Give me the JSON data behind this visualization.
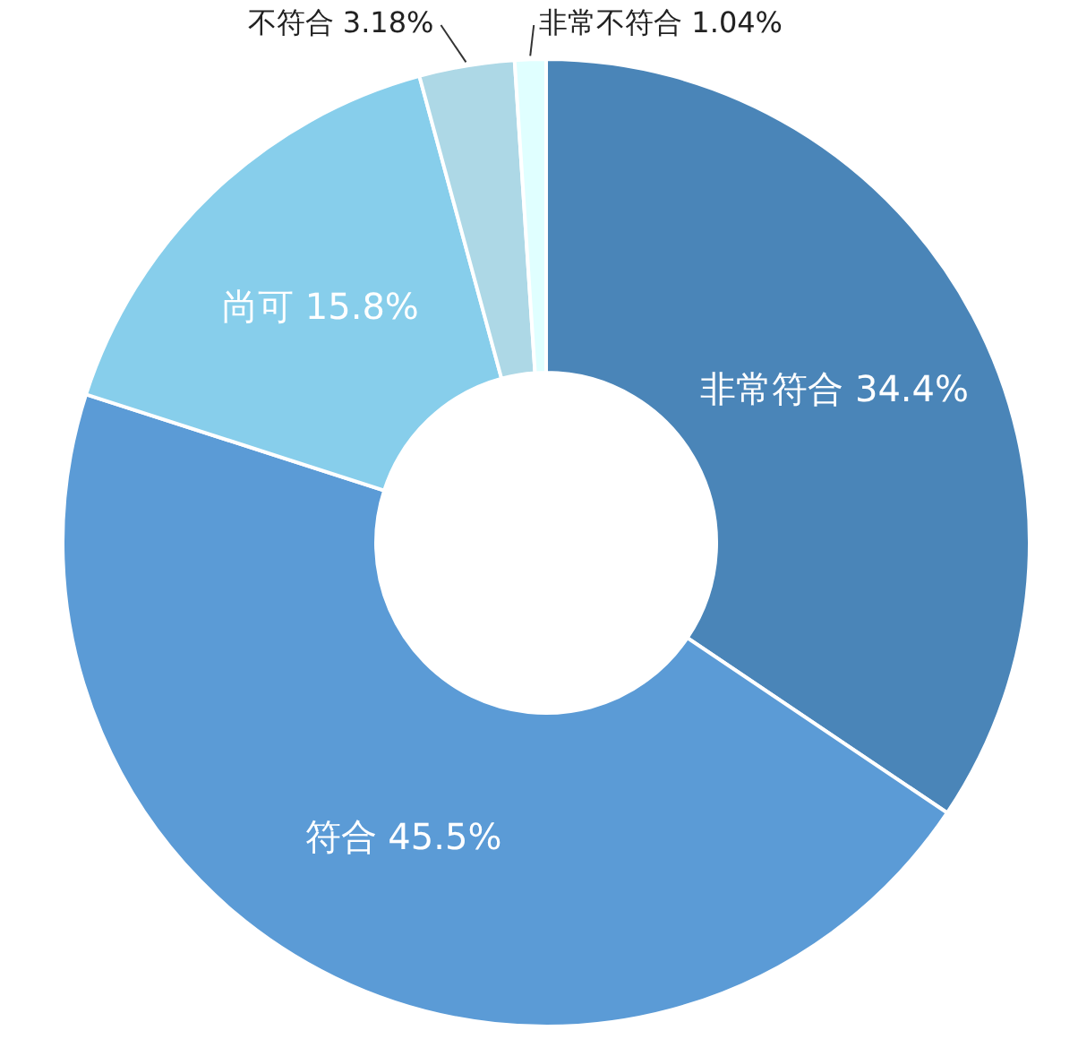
{
  "chart_data": {
    "type": "donut",
    "categories": [
      "非常符合",
      "符合",
      "尚可",
      "不符合",
      "非常不符合"
    ],
    "values": [
      34.4,
      45.5,
      15.8,
      3.18,
      1.04
    ],
    "value_labels": [
      "34.4%",
      "45.5%",
      "15.8%",
      "3.18%",
      "1.04%"
    ],
    "colors": [
      "#4a85b8",
      "#5b9bd6",
      "#87ceeb",
      "#add8e6",
      "#e0ffff"
    ]
  }
}
